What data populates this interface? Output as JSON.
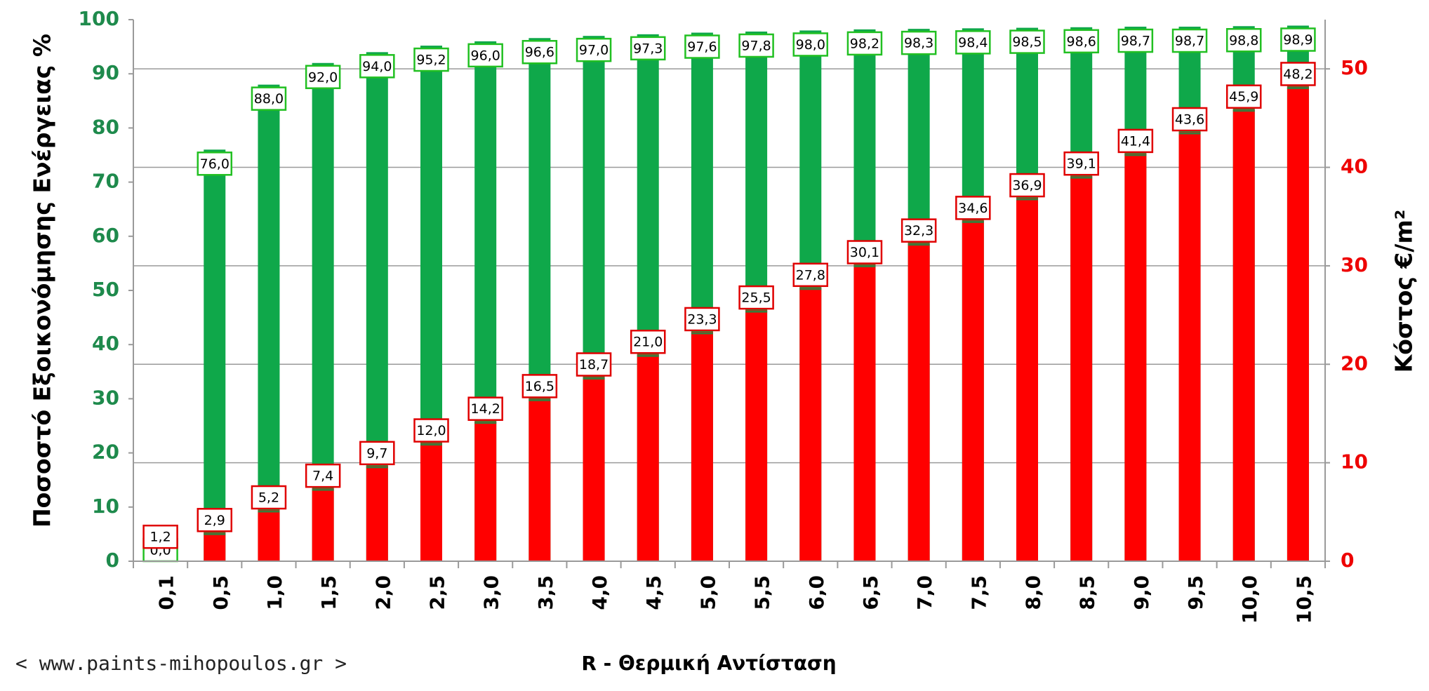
{
  "watermark": "< www.paints-mihopoulos.gr >",
  "colors": {
    "savings": "#0fa84a",
    "savings_label_border": "#22c022",
    "cost": "#ff0000",
    "cost_label_border": "#e00000",
    "left_axis": "#1e8a4c",
    "right_axis": "#ee0000"
  },
  "chart_data": {
    "type": "bar",
    "xlabel": "R - Θερμική Αντίσταση",
    "categories": [
      "0,1",
      "0,5",
      "1,0",
      "1,5",
      "2,0",
      "2,5",
      "3,0",
      "3,5",
      "4,0",
      "4,5",
      "5,0",
      "5,5",
      "6,0",
      "6,5",
      "7,0",
      "7,5",
      "8,0",
      "8,5",
      "9,0",
      "9,5",
      "10,0",
      "10,5"
    ],
    "y_left": {
      "label": "Ποσοστό Εξοικονόμησης Ενέργειας %",
      "ticks": [
        "0",
        "10",
        "20",
        "30",
        "40",
        "50",
        "60",
        "70",
        "80",
        "90",
        "100"
      ],
      "range": [
        0,
        100
      ]
    },
    "y_right": {
      "label": "Κόστος  €/m²",
      "ticks": [
        "0",
        "10",
        "20",
        "30",
        "40",
        "50"
      ],
      "range": [
        0,
        55
      ]
    },
    "grid": true,
    "series": [
      {
        "axis": "left",
        "values": [
          0.0,
          76.0,
          88.0,
          92.0,
          94.0,
          95.2,
          96.0,
          96.6,
          97.0,
          97.3,
          97.6,
          97.8,
          98.0,
          98.2,
          98.3,
          98.4,
          98.5,
          98.6,
          98.7,
          98.7,
          98.8,
          98.9
        ],
        "labels": [
          "0,0",
          "76,0",
          "88,0",
          "92,0",
          "94,0",
          "95,2",
          "96,0",
          "96,6",
          "97,0",
          "97,3",
          "97,6",
          "97,8",
          "98,0",
          "98,2",
          "98,3",
          "98,4",
          "98,5",
          "98,6",
          "98,7",
          "98,7",
          "98,8",
          "98,9"
        ]
      },
      {
        "axis": "right",
        "values": [
          1.2,
          2.9,
          5.2,
          7.4,
          9.7,
          12.0,
          14.2,
          16.5,
          18.7,
          21.0,
          23.3,
          25.5,
          27.8,
          30.1,
          32.3,
          34.6,
          36.9,
          39.1,
          41.4,
          43.6,
          45.9,
          48.2
        ],
        "labels": [
          "1,2",
          "2,9",
          "5,2",
          "7,4",
          "9,7",
          "12,0",
          "14,2",
          "16,5",
          "18,7",
          "21,0",
          "23,3",
          "25,5",
          "27,8",
          "30,1",
          "32,3",
          "34,6",
          "36,9",
          "39,1",
          "41,4",
          "43,6",
          "45,9",
          "48,2"
        ]
      }
    ]
  }
}
